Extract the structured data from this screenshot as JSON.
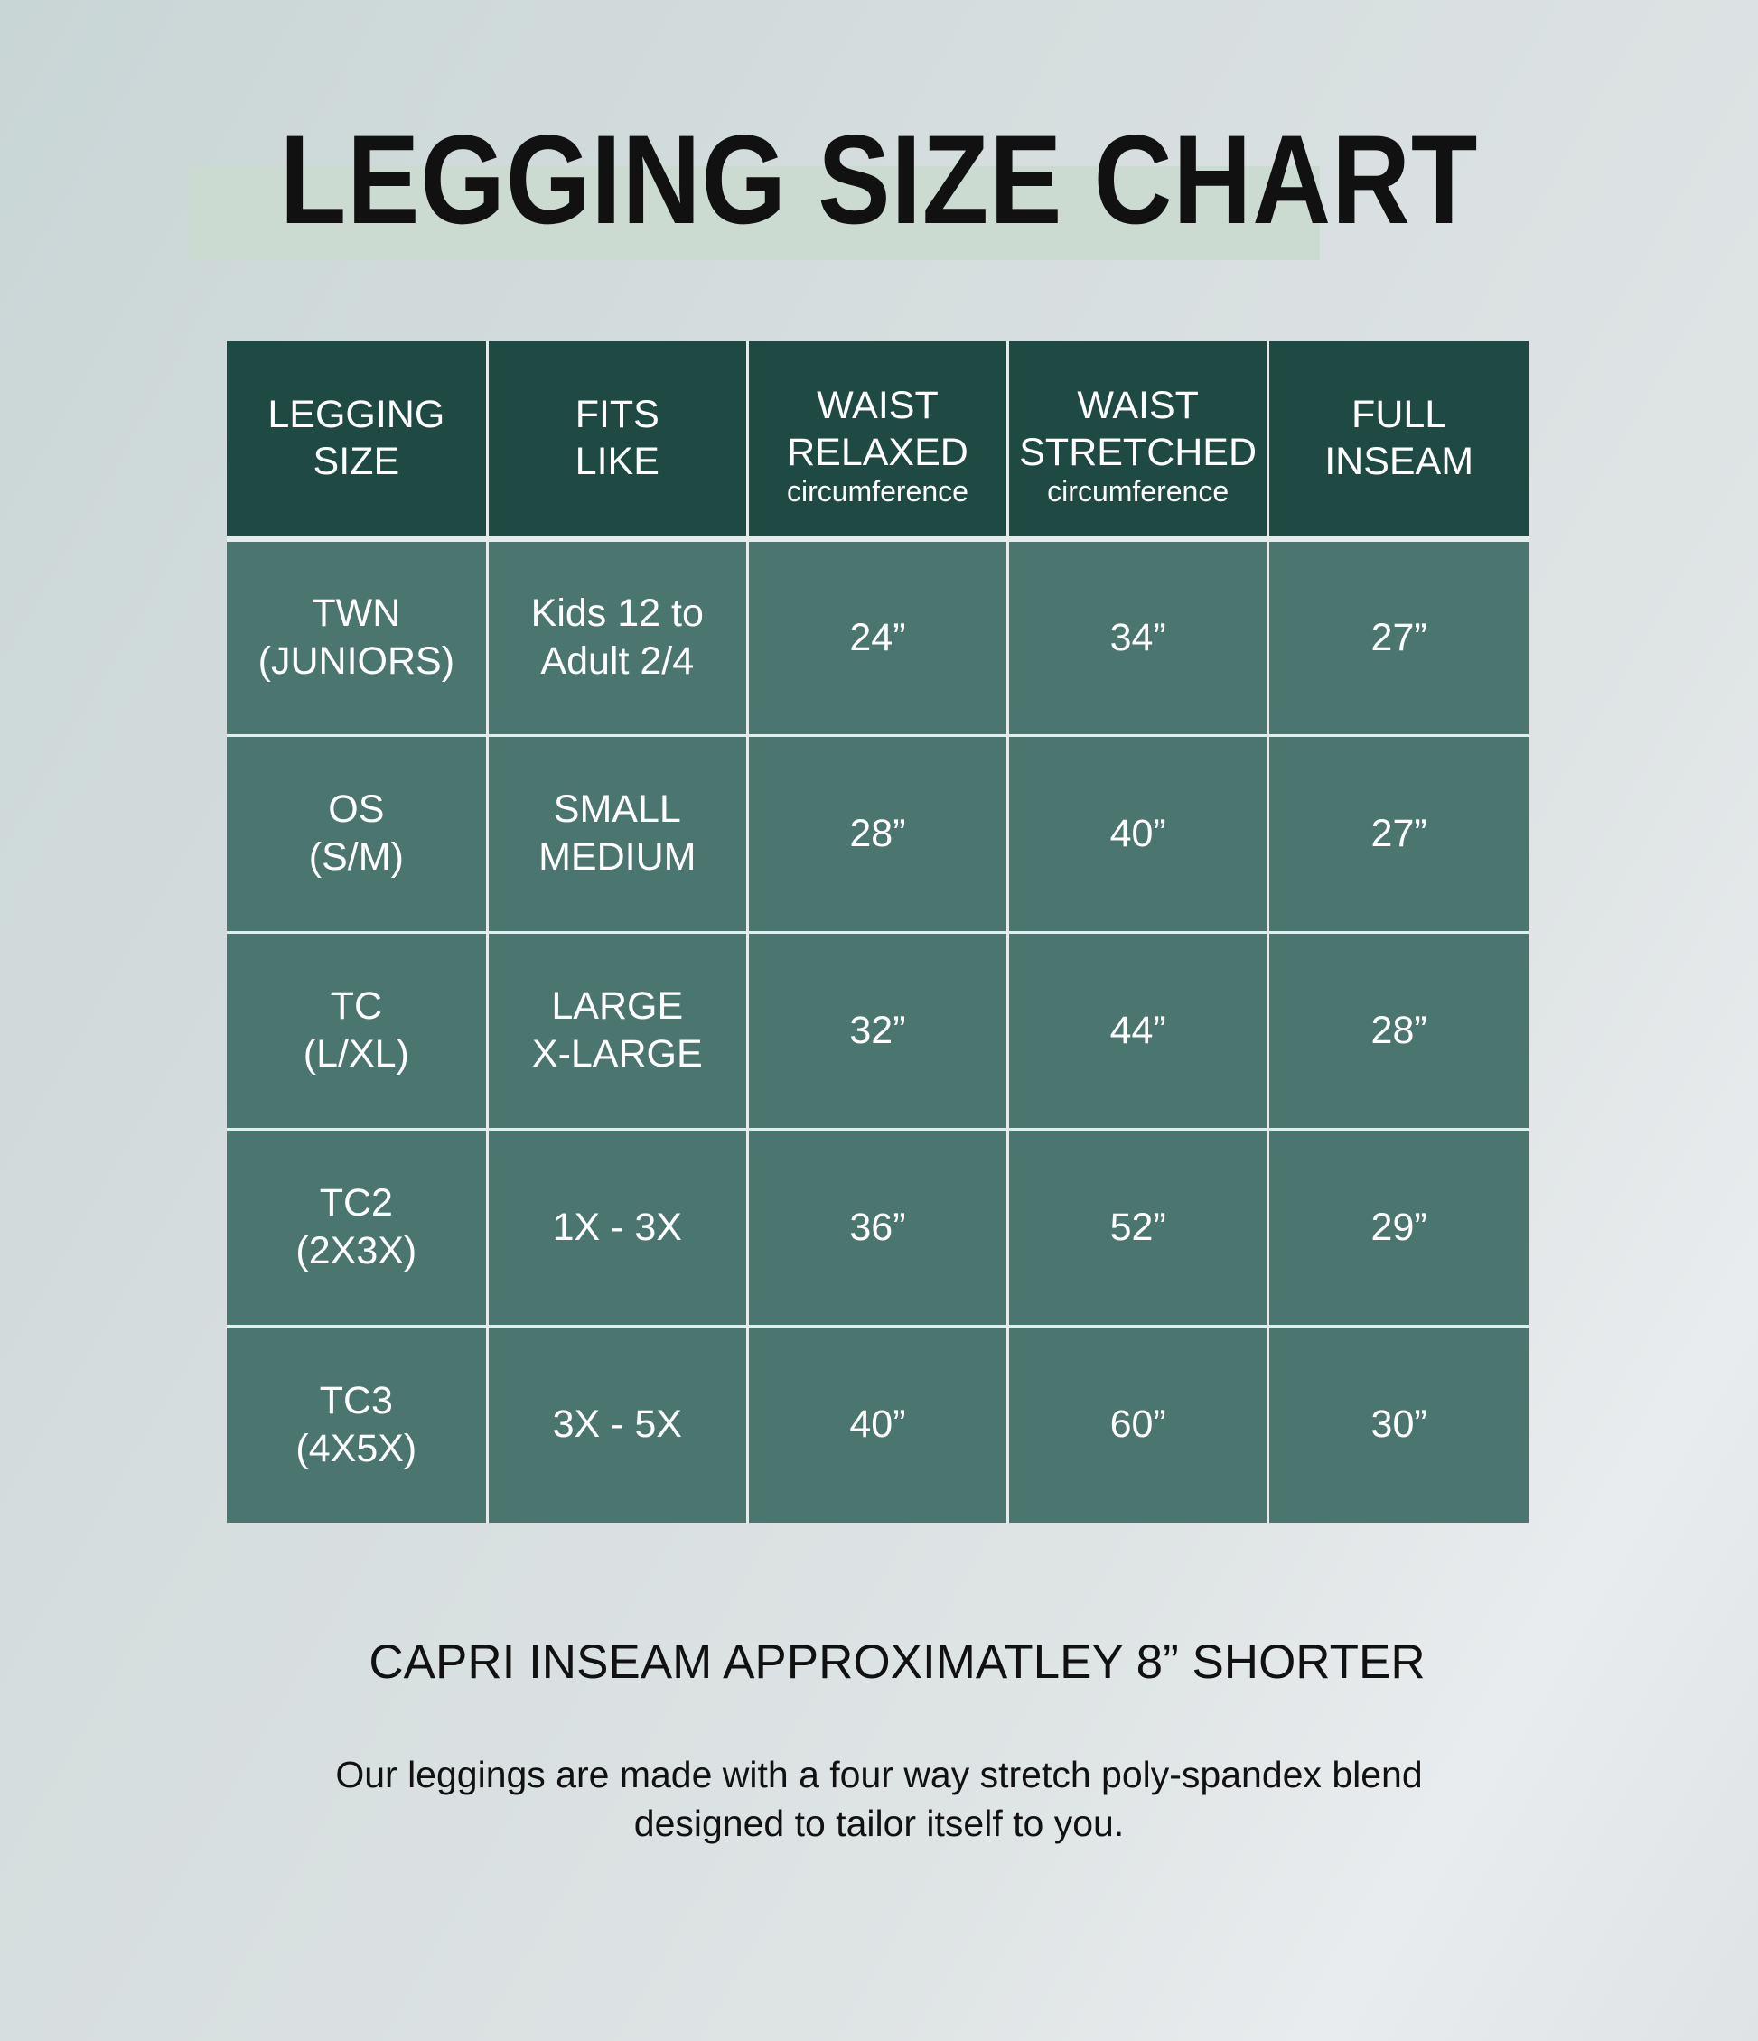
{
  "title": "LEGGING SIZE CHART",
  "colors": {
    "header_bg": "#1f4a43",
    "cell_bg": "#4b7670",
    "title_highlight": "#ccdbd2"
  },
  "table": {
    "headers": [
      {
        "line1": "LEGGING",
        "line2": "SIZE",
        "sub": ""
      },
      {
        "line1": "FITS",
        "line2": "LIKE",
        "sub": ""
      },
      {
        "line1": "WAIST",
        "line2": "RELAXED",
        "sub": "circumference"
      },
      {
        "line1": "WAIST",
        "line2": "STRETCHED",
        "sub": "circumference"
      },
      {
        "line1": "FULL",
        "line2": "INSEAM",
        "sub": ""
      }
    ],
    "rows": [
      {
        "size1": "TWN",
        "size2": "(JUNIORS)",
        "fits1": "Kids 12 to",
        "fits2": "Adult 2/4",
        "relaxed": "24”",
        "stretched": "34”",
        "inseam": "27”"
      },
      {
        "size1": "OS",
        "size2": "(S/M)",
        "fits1": "SMALL",
        "fits2": "MEDIUM",
        "relaxed": "28”",
        "stretched": "40”",
        "inseam": "27”"
      },
      {
        "size1": "TC",
        "size2": "(L/XL)",
        "fits1": "LARGE",
        "fits2": "X-LARGE",
        "relaxed": "32”",
        "stretched": "44”",
        "inseam": "28”"
      },
      {
        "size1": "TC2",
        "size2": "(2X3X)",
        "fits1": "1X - 3X",
        "fits2": "",
        "relaxed": "36”",
        "stretched": "52”",
        "inseam": "29”"
      },
      {
        "size1": "TC3",
        "size2": "(4X5X)",
        "fits1": "3X - 5X",
        "fits2": "",
        "relaxed": "40”",
        "stretched": "60”",
        "inseam": "30”"
      }
    ]
  },
  "capri_note": "CAPRI INSEAM APPROXIMATLEY 8” SHORTER",
  "description": {
    "line1": "Our leggings are made with a four way stretch poly-spandex blend",
    "line2": "designed to tailor itself to you."
  }
}
